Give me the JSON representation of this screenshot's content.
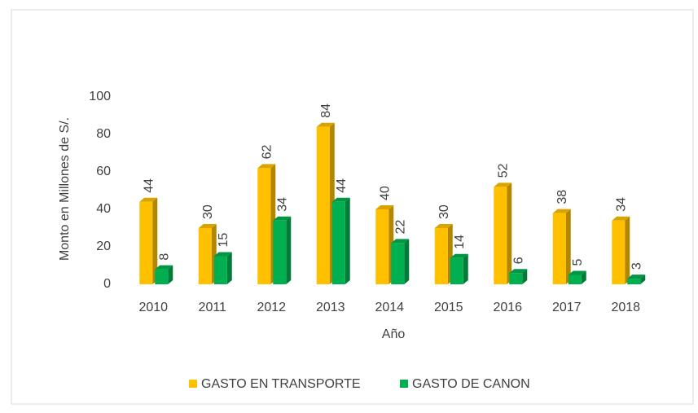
{
  "chart_data": {
    "type": "bar3d",
    "y_label": "Monto en Millones de S/.",
    "x_label": "Año",
    "categories": [
      "2010",
      "2011",
      "2012",
      "2013",
      "2014",
      "2015",
      "2016",
      "2017",
      "2018"
    ],
    "series": [
      {
        "name": "GASTO EN TRANSPORTE",
        "color": "#FFC000",
        "values": [
          44,
          30,
          62,
          84,
          40,
          30,
          52,
          38,
          34
        ]
      },
      {
        "name": "GASTO DE CANON",
        "color": "#00B050",
        "values": [
          8,
          15,
          34,
          44,
          22,
          14,
          6,
          5,
          3
        ]
      }
    ],
    "ylim": [
      0,
      100
    ],
    "yticks": [
      0,
      20,
      40,
      60,
      80,
      100
    ],
    "legend": "bottom"
  }
}
